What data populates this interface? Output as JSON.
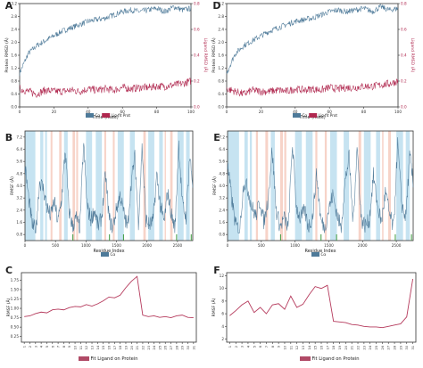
{
  "colors": {
    "protein": "#4e7a99",
    "ligand": "#b0284f",
    "fit": "#b53a5c",
    "legend_fill": "#b04a66",
    "blue_band": "#c6e3f1",
    "red_band": "#f7d3c8",
    "green_tick": "#3d9a3d",
    "axis": "#333333",
    "left_axis_text": "#333333",
    "right_axis_text": "#b0284f"
  },
  "chart_data": [
    {
      "panel_label": "A",
      "type": "line",
      "xlabel": "Time (nsec)",
      "ylabel": "Protein RMSD (Å)",
      "y2label": "Ligand RMSD (Å)",
      "x_ticks": [
        "0",
        "20",
        "40",
        "60",
        "80",
        "100"
      ],
      "xlim": [
        0,
        100
      ],
      "y_ticks": [
        "0.0",
        "0.4",
        "0.8",
        "1.2",
        "1.6",
        "2.0",
        "2.4",
        "2.8",
        "3.2"
      ],
      "ylim": [
        0,
        3.2
      ],
      "y2_ticks": [
        "0.0",
        "0.2",
        "0.4",
        "0.6",
        "0.8"
      ],
      "y2lim": [
        0,
        0.8
      ],
      "series": [
        {
          "name": "Cα",
          "axis": "left",
          "x": [
            0,
            5,
            10,
            15,
            20,
            25,
            30,
            35,
            40,
            45,
            50,
            55,
            60,
            65,
            70,
            75,
            80,
            85,
            90,
            95,
            100
          ],
          "values": [
            1.05,
            1.65,
            1.9,
            2.05,
            2.2,
            2.35,
            2.45,
            2.55,
            2.65,
            2.7,
            2.75,
            2.85,
            2.95,
            3.0,
            2.95,
            3.0,
            3.05,
            2.95,
            3.1,
            3.0,
            3.05
          ]
        },
        {
          "name": "Lig fit Prot",
          "axis": "right",
          "x": [
            0,
            5,
            10,
            15,
            20,
            25,
            30,
            35,
            40,
            45,
            50,
            55,
            60,
            65,
            70,
            75,
            80,
            85,
            90,
            95,
            100
          ],
          "values": [
            0.14,
            0.12,
            0.1,
            0.13,
            0.12,
            0.12,
            0.13,
            0.12,
            0.14,
            0.13,
            0.14,
            0.13,
            0.15,
            0.14,
            0.15,
            0.15,
            0.16,
            0.16,
            0.17,
            0.18,
            0.2
          ]
        }
      ],
      "legend": [
        "Cα",
        "Lig fit Prot"
      ],
      "legend_position": "bottom"
    },
    {
      "panel_label": "D",
      "type": "line",
      "xlabel": "Time (nsec)",
      "ylabel": "Protein RMSD (Å)",
      "y2label": "Ligand RMSD (Å)",
      "x_ticks": [
        "0",
        "20",
        "40",
        "60",
        "80",
        "100"
      ],
      "xlim": [
        0,
        100
      ],
      "y_ticks": [
        "0.0",
        "0.4",
        "0.8",
        "1.2",
        "1.6",
        "2.0",
        "2.4",
        "2.8",
        "3.2"
      ],
      "ylim": [
        0,
        3.2
      ],
      "y2_ticks": [
        "0.0",
        "0.2",
        "0.4",
        "0.6",
        "0.8"
      ],
      "y2lim": [
        0,
        0.8
      ],
      "series": [
        {
          "name": "Cα",
          "axis": "left",
          "x": [
            0,
            5,
            10,
            15,
            20,
            25,
            30,
            35,
            40,
            45,
            50,
            55,
            60,
            65,
            70,
            75,
            80,
            85,
            90,
            95,
            100
          ],
          "values": [
            1.05,
            1.65,
            1.9,
            2.05,
            2.2,
            2.35,
            2.45,
            2.55,
            2.65,
            2.7,
            2.75,
            2.85,
            2.95,
            3.0,
            2.95,
            3.0,
            3.05,
            2.95,
            3.1,
            3.0,
            3.05
          ]
        },
        {
          "name": "Lig fit Prot",
          "axis": "right",
          "x": [
            0,
            5,
            10,
            15,
            20,
            25,
            30,
            35,
            40,
            45,
            50,
            55,
            60,
            65,
            70,
            75,
            80,
            85,
            90,
            95,
            100
          ],
          "values": [
            0.14,
            0.12,
            0.1,
            0.13,
            0.12,
            0.12,
            0.13,
            0.12,
            0.14,
            0.13,
            0.14,
            0.13,
            0.15,
            0.14,
            0.15,
            0.15,
            0.16,
            0.16,
            0.17,
            0.18,
            0.2
          ]
        }
      ],
      "legend": [
        "Cα",
        "Lig fit Prot"
      ],
      "legend_position": "bottom"
    },
    {
      "panel_label": "B",
      "type": "line",
      "xlabel": "Residue Index",
      "ylabel": "RMSF (Å)",
      "x_ticks": [
        "0",
        "500",
        "1000",
        "1500",
        "2000",
        "2500"
      ],
      "xlim": [
        0,
        2750
      ],
      "y_ticks": [
        "0.8",
        "1.6",
        "2.4",
        "3.2",
        "4.0",
        "4.8",
        "5.6",
        "6.4",
        "7.2"
      ],
      "ylim": [
        0.4,
        7.6
      ],
      "blue_bands": [
        [
          0,
          170
        ],
        [
          250,
          300
        ],
        [
          330,
          360
        ],
        [
          640,
          700
        ],
        [
          1000,
          1100
        ],
        [
          1160,
          1260
        ],
        [
          1520,
          1620
        ],
        [
          1720,
          1800
        ],
        [
          2020,
          2120
        ],
        [
          2200,
          2260
        ],
        [
          2500,
          2600
        ],
        [
          2640,
          2700
        ]
      ],
      "red_bands": [
        [
          420,
          450
        ],
        [
          560,
          600
        ],
        [
          780,
          820
        ],
        [
          840,
          870
        ],
        [
          1300,
          1330
        ],
        [
          1440,
          1470
        ],
        [
          1940,
          1980
        ],
        [
          2290,
          2310
        ],
        [
          2380,
          2420
        ]
      ],
      "green_ticks": [
        785,
        1385,
        1615,
        2485,
        2725
      ],
      "series": [
        {
          "name": "Cα",
          "x": [
            0,
            60,
            120,
            180,
            240,
            300,
            360,
            420,
            480,
            540,
            600,
            660,
            720,
            780,
            840,
            900,
            960,
            1020,
            1080,
            1140,
            1200,
            1260,
            1320,
            1380,
            1440,
            1500,
            1560,
            1620,
            1680,
            1740,
            1800,
            1860,
            1920,
            1980,
            2040,
            2100,
            2160,
            2220,
            2280,
            2340,
            2400,
            2460,
            2520,
            2580,
            2640,
            2700,
            2750
          ],
          "values": [
            5.3,
            3.2,
            1.4,
            1.1,
            4.3,
            3.8,
            2.6,
            2.0,
            3.0,
            1.6,
            3.1,
            6.4,
            2.4,
            1.3,
            1.9,
            1.2,
            6.8,
            2.6,
            1.8,
            2.4,
            1.3,
            2.0,
            4.8,
            1.8,
            1.2,
            2.5,
            3.4,
            2.2,
            1.2,
            4.2,
            5.9,
            1.6,
            6.6,
            1.8,
            1.4,
            1.7,
            4.7,
            2.7,
            1.6,
            3.6,
            2.1,
            1.2,
            6.8,
            2.8,
            1.9,
            6.0,
            4.1
          ]
        }
      ],
      "legend": [
        "Cα"
      ],
      "legend_position": "bottom"
    },
    {
      "panel_label": "E",
      "type": "line",
      "xlabel": "Residue Index",
      "ylabel": "RMSF (Å)",
      "x_ticks": [
        "0",
        "500",
        "1000",
        "1500",
        "2000",
        "2500"
      ],
      "xlim": [
        0,
        2750
      ],
      "y_ticks": [
        "0.8",
        "1.6",
        "2.4",
        "3.2",
        "4.0",
        "4.8",
        "5.6",
        "6.4",
        "7.2"
      ],
      "ylim": [
        0.4,
        7.6
      ],
      "blue_bands": [
        [
          0,
          170
        ],
        [
          250,
          300
        ],
        [
          330,
          360
        ],
        [
          640,
          700
        ],
        [
          1000,
          1100
        ],
        [
          1160,
          1260
        ],
        [
          1520,
          1620
        ],
        [
          1720,
          1800
        ],
        [
          2020,
          2120
        ],
        [
          2200,
          2260
        ],
        [
          2500,
          2600
        ],
        [
          2640,
          2700
        ]
      ],
      "red_bands": [
        [
          420,
          450
        ],
        [
          560,
          600
        ],
        [
          780,
          820
        ],
        [
          840,
          870
        ],
        [
          1300,
          1330
        ],
        [
          1440,
          1470
        ],
        [
          1940,
          1980
        ],
        [
          2290,
          2310
        ],
        [
          2380,
          2420
        ]
      ],
      "green_ticks": [
        785,
        1385,
        1615,
        2485,
        2725
      ],
      "series": [
        {
          "name": "Cα",
          "x": [
            0,
            60,
            120,
            180,
            240,
            300,
            360,
            420,
            480,
            540,
            600,
            660,
            720,
            780,
            840,
            900,
            960,
            1020,
            1080,
            1140,
            1200,
            1260,
            1320,
            1380,
            1440,
            1500,
            1560,
            1620,
            1680,
            1740,
            1800,
            1860,
            1920,
            1980,
            2040,
            2100,
            2160,
            2220,
            2280,
            2340,
            2400,
            2460,
            2520,
            2580,
            2640,
            2700,
            2750
          ],
          "values": [
            5.3,
            3.2,
            1.4,
            1.1,
            4.3,
            3.8,
            2.6,
            2.0,
            3.0,
            1.6,
            3.1,
            6.4,
            2.4,
            1.3,
            1.9,
            1.2,
            6.8,
            2.6,
            1.8,
            2.4,
            1.3,
            2.0,
            4.8,
            1.8,
            1.2,
            2.5,
            3.4,
            2.2,
            1.2,
            4.2,
            5.9,
            1.6,
            6.6,
            1.8,
            1.4,
            1.7,
            4.7,
            2.7,
            1.6,
            3.6,
            2.1,
            1.2,
            6.8,
            2.8,
            1.9,
            6.0,
            4.1
          ]
        }
      ],
      "legend": [
        "Cα"
      ],
      "legend_position": "bottom"
    },
    {
      "panel_label": "C",
      "type": "line",
      "xlabel": "",
      "ylabel": "RMSF (Å)",
      "x_ticks": [
        "1",
        "2",
        "3",
        "4",
        "5",
        "6",
        "7",
        "8",
        "9",
        "10",
        "11",
        "12",
        "13",
        "14",
        "15",
        "16",
        "17",
        "18",
        "19",
        "20",
        "21",
        "22",
        "23",
        "24",
        "25",
        "26",
        "27",
        "28",
        "29",
        "30",
        "31"
      ],
      "y_ticks": [
        "0.25",
        "0.50",
        "0.75",
        "1.00",
        "1.25",
        "1.50",
        "1.75"
      ],
      "ylim": [
        0.1,
        1.95
      ],
      "series": [
        {
          "name": "Fit Ligand on Protein",
          "x": [
            1,
            2,
            3,
            4,
            5,
            6,
            7,
            8,
            9,
            10,
            11,
            12,
            13,
            14,
            15,
            16,
            17,
            18,
            19,
            20,
            21,
            22,
            23,
            24,
            25,
            26,
            27,
            28,
            29,
            30,
            31
          ],
          "values": [
            0.78,
            0.8,
            0.86,
            0.9,
            0.88,
            0.96,
            0.98,
            0.96,
            1.02,
            1.05,
            1.04,
            1.1,
            1.06,
            1.12,
            1.2,
            1.3,
            1.28,
            1.35,
            1.55,
            1.72,
            1.85,
            0.82,
            0.78,
            0.8,
            0.76,
            0.78,
            0.75,
            0.8,
            0.82,
            0.76,
            0.75
          ]
        }
      ],
      "legend": [
        "Fit Ligand on Protein"
      ],
      "legend_position": "bottom"
    },
    {
      "panel_label": "F",
      "type": "line",
      "xlabel": "",
      "ylabel": "RMSF (Å)",
      "x_ticks": [
        "1",
        "2",
        "3",
        "4",
        "5",
        "6",
        "7",
        "8",
        "9",
        "10",
        "11",
        "12",
        "13",
        "14",
        "15",
        "16",
        "17",
        "18",
        "19",
        "20",
        "21",
        "22",
        "23",
        "24",
        "25",
        "26",
        "27",
        "28",
        "29",
        "30",
        "31"
      ],
      "y_ticks": [
        "2",
        "4",
        "6",
        "8",
        "10",
        "12"
      ],
      "ylim": [
        1.5,
        12.5
      ],
      "series": [
        {
          "name": "Fit Ligand on Protein",
          "x": [
            1,
            2,
            3,
            4,
            5,
            6,
            7,
            8,
            9,
            10,
            11,
            12,
            13,
            14,
            15,
            16,
            17,
            18,
            19,
            20,
            21,
            22,
            23,
            24,
            25,
            26,
            27,
            28,
            29,
            30,
            31
          ],
          "values": [
            5.7,
            6.5,
            7.4,
            8.0,
            6.2,
            7.0,
            6.0,
            7.4,
            7.6,
            6.7,
            8.8,
            7.0,
            7.5,
            9.0,
            10.3,
            10.0,
            10.5,
            4.8,
            4.7,
            4.6,
            4.3,
            4.2,
            4.0,
            3.9,
            3.9,
            3.8,
            4.0,
            4.2,
            4.4,
            5.5,
            11.5
          ]
        }
      ],
      "legend": [
        "Fit Ligand on Protein"
      ],
      "legend_position": "bottom"
    }
  ]
}
